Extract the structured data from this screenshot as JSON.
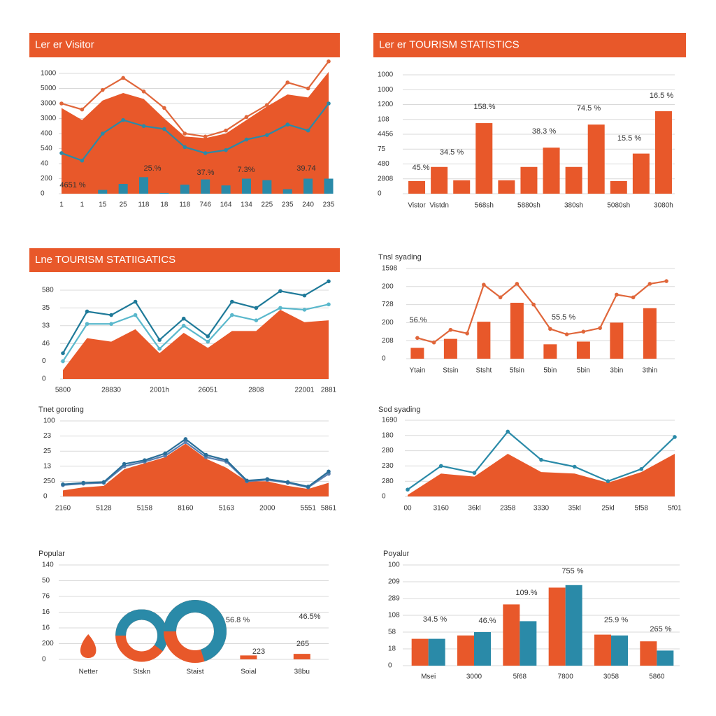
{
  "chart_data": [
    {
      "type": "line",
      "title": "Ler er Visitor",
      "categories": [
        "1",
        "1",
        "15",
        "25",
        "118",
        "18",
        "118",
        "746",
        "164",
        "134",
        "225",
        "235",
        "240",
        "235"
      ],
      "ylim": [
        0,
        8
      ],
      "yticks": [
        {
          "value": 0,
          "label": "0"
        },
        {
          "value": 1,
          "label": "200"
        },
        {
          "value": 2,
          "label": "40"
        },
        {
          "value": 3,
          "label": "540"
        },
        {
          "value": 4,
          "label": "400"
        },
        {
          "value": 5,
          "label": "3000"
        },
        {
          "value": 6,
          "label": "3000"
        },
        {
          "value": 7,
          "label": "5000"
        },
        {
          "value": 8,
          "label": "1000"
        }
      ],
      "series": [
        {
          "type": "area",
          "color": "#e8582a",
          "values": [
            5.7,
            4.9,
            6.2,
            6.7,
            6.3,
            5.0,
            3.8,
            3.7,
            4.0,
            4.9,
            5.8,
            6.6,
            6.4,
            8.1
          ]
        },
        {
          "type": "bar",
          "color": "#2a8aa8",
          "values": [
            null,
            null,
            0.25,
            0.65,
            1.1,
            0.05,
            0.6,
            0.95,
            0.55,
            1.0,
            0.9,
            0.3,
            1.0,
            1.0
          ]
        },
        {
          "type": "line",
          "color": "#e0663a",
          "values": [
            6.0,
            5.6,
            6.9,
            7.7,
            6.8,
            5.7,
            4.0,
            3.8,
            4.2,
            5.1,
            5.9,
            7.4,
            7.0,
            8.8
          ]
        },
        {
          "type": "line",
          "color": "#2a8aa8",
          "values": [
            2.7,
            2.2,
            4.0,
            4.9,
            4.5,
            4.3,
            3.1,
            2.7,
            2.9,
            3.6,
            3.9,
            4.6,
            4.2,
            6.0
          ]
        }
      ],
      "annotations": [
        "4651 %",
        "25.%",
        "37.%",
        "7.3%",
        "39.74"
      ]
    },
    {
      "type": "bar",
      "title": "Ler er TOURISM STATISTICS",
      "categories": [
        "Vistor",
        "Vistdn",
        null,
        "568sh",
        null,
        "5880sh",
        null,
        "380sh",
        null,
        "5080sh",
        null,
        "3080h"
      ],
      "ylim": [
        0,
        8
      ],
      "yticks": [
        {
          "value": 0,
          "label": "0"
        },
        {
          "value": 1,
          "label": "2808"
        },
        {
          "value": 2,
          "label": "480"
        },
        {
          "value": 3,
          "label": "75"
        },
        {
          "value": 4,
          "label": "4456"
        },
        {
          "value": 5,
          "label": "108"
        },
        {
          "value": 6,
          "label": "1200"
        },
        {
          "value": 7,
          "label": "1000"
        },
        {
          "value": 8,
          "label": "1000"
        }
      ],
      "series": [
        {
          "type": "bar",
          "color": "#e8582a",
          "values": [
            0.85,
            1.8,
            0.9,
            4.75,
            0.9,
            1.8,
            3.1,
            1.8,
            4.65,
            0.85,
            2.7,
            5.55
          ]
        }
      ],
      "annotations": [
        "45.%",
        "34.5 %",
        "158.%",
        "38.3 %",
        "74.5 %",
        "15.5 %",
        "16.5 %"
      ]
    },
    {
      "type": "area",
      "title": "Lne TOURISM STATIIGATICS",
      "categories": [
        "5800",
        null,
        "28830",
        null,
        "2001h",
        null,
        "26051",
        null,
        "2808",
        null,
        "22001",
        "2881"
      ],
      "ylim": [
        0,
        5
      ],
      "yticks": [
        {
          "value": 0,
          "label": "0"
        },
        {
          "value": 1,
          "label": "0"
        },
        {
          "value": 2,
          "label": "46"
        },
        {
          "value": 3,
          "label": "33"
        },
        {
          "value": 4,
          "label": "35"
        },
        {
          "value": 5,
          "label": "580"
        }
      ],
      "series": [
        {
          "type": "area",
          "color": "#e8582a",
          "values": [
            0.5,
            2.3,
            2.1,
            2.8,
            1.45,
            2.6,
            1.75,
            2.7,
            2.7,
            3.9,
            3.2,
            3.3
          ]
        },
        {
          "type": "line",
          "color": "#5ab8cc",
          "values": [
            1.0,
            3.1,
            3.1,
            3.6,
            1.7,
            3.0,
            2.1,
            3.6,
            3.3,
            4.0,
            3.9,
            4.2
          ]
        },
        {
          "type": "line",
          "color": "#1f7a99",
          "values": [
            1.45,
            3.8,
            3.6,
            4.35,
            2.2,
            3.4,
            2.4,
            4.35,
            4.0,
            4.95,
            4.7,
            5.5
          ]
        }
      ],
      "annotations": []
    },
    {
      "type": "bar",
      "title": "Tnsl syading",
      "categories": [
        "Ytain",
        null,
        "Stsin",
        null,
        "Stsht",
        null,
        "5fsin",
        null,
        "5bin",
        null,
        "5bin",
        null,
        "3bin",
        null,
        "3thin",
        null
      ],
      "ylim": [
        0,
        5
      ],
      "yticks": [
        {
          "value": 0,
          "label": "0"
        },
        {
          "value": 1,
          "label": "208"
        },
        {
          "value": 2,
          "label": "200"
        },
        {
          "value": 3,
          "label": "728"
        },
        {
          "value": 4,
          "label": "200"
        },
        {
          "value": 5,
          "label": "1598"
        }
      ],
      "series": [
        {
          "type": "bar",
          "color": "#e8582a",
          "values": [
            0.6,
            null,
            1.1,
            null,
            2.05,
            null,
            3.1,
            null,
            0.8,
            null,
            0.95,
            null,
            2.0,
            null,
            2.8,
            null
          ]
        },
        {
          "type": "line",
          "color": "#e0663a",
          "values": [
            1.15,
            0.9,
            1.6,
            1.4,
            4.1,
            3.4,
            4.15,
            3.0,
            1.65,
            1.35,
            1.5,
            1.7,
            3.55,
            3.4,
            4.15,
            4.3
          ]
        }
      ],
      "annotations": [
        "56.%",
        "55.5 %"
      ]
    },
    {
      "type": "area",
      "title": "Tnet goroting",
      "categories": [
        "2160",
        null,
        "5128",
        null,
        "5158",
        null,
        "8160",
        null,
        "5163",
        null,
        "2000",
        null,
        "5551",
        "5861"
      ],
      "ylim": [
        0,
        5
      ],
      "yticks": [
        {
          "value": 0,
          "label": "0"
        },
        {
          "value": 1,
          "label": "250"
        },
        {
          "value": 2,
          "label": "13"
        },
        {
          "value": 3,
          "label": "25"
        },
        {
          "value": 4,
          "label": "23"
        },
        {
          "value": 5,
          "label": "100"
        }
      ],
      "series": [
        {
          "type": "area",
          "color": "#e8582a",
          "values": [
            0.4,
            0.6,
            0.7,
            1.8,
            2.2,
            2.6,
            3.5,
            2.5,
            1.9,
            1.0,
            1.0,
            0.7,
            0.5,
            0.9
          ]
        },
        {
          "type": "line",
          "color": "#5a7fb0",
          "values": [
            0.75,
            0.85,
            0.9,
            2.0,
            2.3,
            2.7,
            3.6,
            2.6,
            2.3,
            1.0,
            1.1,
            0.9,
            0.6,
            1.5
          ]
        },
        {
          "type": "line",
          "color": "#2a6f99",
          "values": [
            0.8,
            0.9,
            0.95,
            2.15,
            2.4,
            2.85,
            3.8,
            2.75,
            2.4,
            1.05,
            1.15,
            0.95,
            0.65,
            1.65
          ]
        }
      ],
      "annotations": []
    },
    {
      "type": "area",
      "title": "Sod syading",
      "categories": [
        "00",
        "3160",
        "36kl",
        "2358",
        "3330",
        "35kl",
        "25kl",
        "5f58",
        "5f01"
      ],
      "ylim": [
        0,
        5
      ],
      "yticks": [
        {
          "value": 0,
          "label": "0"
        },
        {
          "value": 1,
          "label": "280"
        },
        {
          "value": 2,
          "label": "230"
        },
        {
          "value": 3,
          "label": "280"
        },
        {
          "value": 4,
          "label": "180"
        },
        {
          "value": 5,
          "label": "1690"
        }
      ],
      "series": [
        {
          "type": "area",
          "color": "#e8582a",
          "values": [
            0.1,
            1.5,
            1.3,
            2.8,
            1.6,
            1.5,
            0.9,
            1.6,
            2.8
          ]
        },
        {
          "type": "line",
          "color": "#2a8aa8",
          "values": [
            0.45,
            2.0,
            1.55,
            4.25,
            2.4,
            1.95,
            1.0,
            1.8,
            3.9
          ]
        }
      ],
      "annotations": []
    },
    {
      "type": "donut",
      "title": "Popular",
      "categories": [
        "Netter",
        "Stskn",
        "Staist",
        "Soial",
        "38bu"
      ],
      "ylim": [
        0,
        6
      ],
      "yticks": [
        {
          "value": 0,
          "label": "0"
        },
        {
          "value": 1,
          "label": "200"
        },
        {
          "value": 2,
          "label": "16"
        },
        {
          "value": 3,
          "label": "16"
        },
        {
          "value": 4,
          "label": "76"
        },
        {
          "value": 5,
          "label": "50"
        },
        {
          "value": 6,
          "label": "140"
        }
      ],
      "series": [
        {
          "type": "donut",
          "color": "#2a8aa8",
          "values": [
            null,
            60,
            70,
            null,
            null
          ]
        },
        {
          "type": "bar",
          "color": "#e8582a",
          "values": [
            null,
            null,
            null,
            0.25,
            0.35
          ]
        }
      ],
      "annotations": [
        "56.8 %",
        "46.5%",
        "223",
        "265"
      ]
    },
    {
      "type": "bar",
      "title": "Poyalur",
      "categories": [
        "Msei",
        "3000",
        "5f68",
        "7800",
        "3058",
        "5860"
      ],
      "ylim": [
        0,
        6
      ],
      "yticks": [
        {
          "value": 0,
          "label": "0"
        },
        {
          "value": 1,
          "label": "18"
        },
        {
          "value": 2,
          "label": "58"
        },
        {
          "value": 3,
          "label": "108"
        },
        {
          "value": 4,
          "label": "289"
        },
        {
          "value": 5,
          "label": "209"
        },
        {
          "value": 6,
          "label": "100"
        }
      ],
      "series": [
        {
          "type": "bar",
          "color": "#e8582a",
          "values": [
            1.6,
            1.8,
            3.65,
            4.65,
            1.85,
            1.45
          ]
        },
        {
          "type": "bar",
          "color": "#2a8aa8",
          "values": [
            1.6,
            2.0,
            2.65,
            4.8,
            1.8,
            0.9
          ]
        }
      ],
      "annotations": [
        "34.5 %",
        "46.%",
        "109.%",
        "755 %",
        "25.9 %",
        "265 %"
      ]
    }
  ]
}
